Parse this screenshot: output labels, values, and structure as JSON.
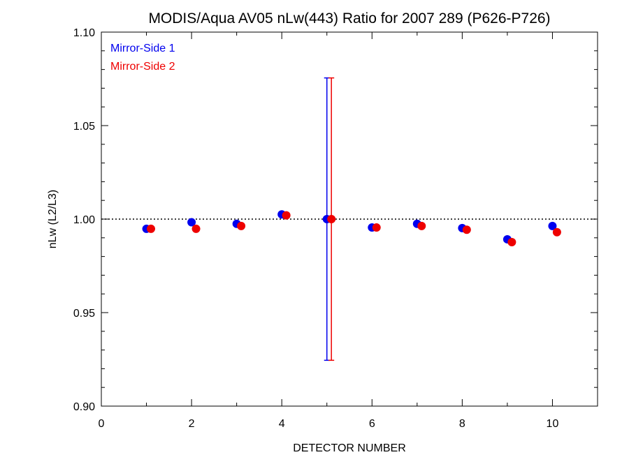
{
  "chart_data": {
    "type": "scatter",
    "title": "MODIS/Aqua AV05 nLw(443) Ratio for 2007 289 (P626-P726)",
    "xlabel": "DETECTOR NUMBER",
    "ylabel": "nLw (L2/L3)",
    "xlim": [
      0,
      11
    ],
    "ylim": [
      0.9,
      1.1
    ],
    "x_ticks": [
      "0",
      "2",
      "4",
      "6",
      "8",
      "10"
    ],
    "y_ticks": [
      "0.90",
      "0.95",
      "1.00",
      "1.05",
      "1.10"
    ],
    "reference_line": {
      "y": 1.0,
      "style": "dotted"
    },
    "legend": {
      "placement": "top-left"
    },
    "series": [
      {
        "name": "Mirror-Side 1",
        "color": "#0000ee",
        "x_offset": 0,
        "points": [
          {
            "x": 1,
            "y": 0.9948
          },
          {
            "x": 2,
            "y": 0.9983
          },
          {
            "x": 3,
            "y": 0.9975
          },
          {
            "x": 4,
            "y": 1.0025
          },
          {
            "x": 5,
            "y": 1.0,
            "err_low": 0.9245,
            "err_high": 1.0755
          },
          {
            "x": 6,
            "y": 0.9955
          },
          {
            "x": 7,
            "y": 0.9975
          },
          {
            "x": 8,
            "y": 0.9952
          },
          {
            "x": 9,
            "y": 0.9892
          },
          {
            "x": 10,
            "y": 0.9963
          }
        ]
      },
      {
        "name": "Mirror-Side 2",
        "color": "#ee0000",
        "x_offset": 0.1,
        "points": [
          {
            "x": 1,
            "y": 0.9948
          },
          {
            "x": 2,
            "y": 0.9948
          },
          {
            "x": 3,
            "y": 0.9963
          },
          {
            "x": 4,
            "y": 1.002
          },
          {
            "x": 5,
            "y": 1.0,
            "err_low": 0.9245,
            "err_high": 1.0755
          },
          {
            "x": 6,
            "y": 0.9955
          },
          {
            "x": 7,
            "y": 0.9963
          },
          {
            "x": 8,
            "y": 0.9943
          },
          {
            "x": 9,
            "y": 0.9877
          },
          {
            "x": 10,
            "y": 0.993
          }
        ]
      }
    ]
  }
}
